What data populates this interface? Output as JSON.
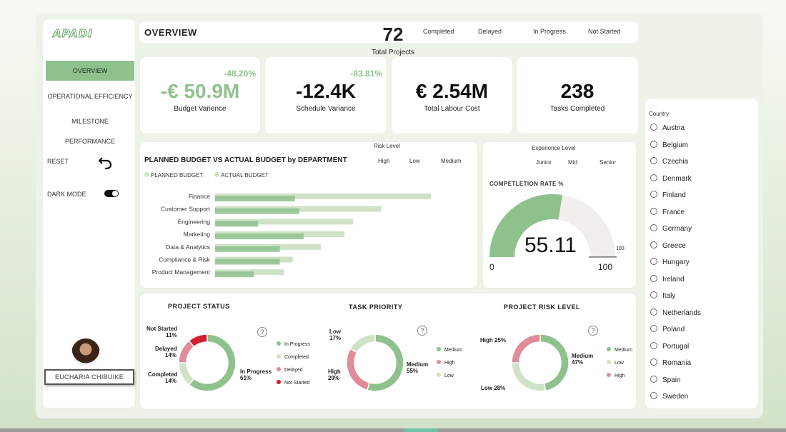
{
  "colors": {
    "green": "#8fc18d",
    "light_green": "#cfe2c6",
    "pink": "#e08c99",
    "red": "#d32030"
  },
  "sidebar": {
    "logo": "APADI",
    "nav": [
      "OVERVIEW",
      "OPERATIONAL EFFICIENCY",
      "MILESTONE PERFORMANCE"
    ],
    "active": 0,
    "reset_label": "RESET",
    "dark_mode_label": "DARK MODE",
    "user_name": "EUCHARIA CHIBUIKE"
  },
  "header": {
    "title": "OVERVIEW",
    "status_legend": [
      "Completed",
      "Delayed",
      "In Progress",
      "Not Started"
    ]
  },
  "kpis": [
    {
      "value": "-€ 50.9M",
      "label": "Budget Varience",
      "change": "-48.20%"
    },
    {
      "value": "-12.4K",
      "label": "Schedule Variance",
      "change": "-83.81%"
    },
    {
      "value": "€ 2.54M",
      "label": "Total Labour Cost"
    },
    {
      "value": "238",
      "label": "Tasks Completed"
    }
  ],
  "total": {
    "value": "72",
    "label": "Total Projects"
  },
  "country": {
    "title": "Country",
    "items": [
      "Austria",
      "Belgium",
      "Czechia",
      "Denmark",
      "Finland",
      "France",
      "Germany",
      "Greece",
      "Hungary",
      "Ireland",
      "Italy",
      "Netherlands",
      "Poland",
      "Portugal",
      "Romania",
      "Spain",
      "Sweden"
    ]
  },
  "budget_chart": {
    "title": "PLANNED BUDGET VS ACTUAL BUDGET by DEPARTMENT",
    "legend": [
      "PLANNED BUDGET",
      "ACTUAL BUDGET"
    ],
    "risk_title": "Risk Level",
    "risk_options": [
      "High",
      "Low",
      "Medium"
    ]
  },
  "gauge": {
    "experience_title": "Experience Level",
    "experience_options": [
      "Junior",
      "Mid",
      "Senior"
    ],
    "title": "COMPETLETION RATE %",
    "value": 55.11,
    "value_text": "55.11",
    "min_label": "0",
    "max_label": "100",
    "target_label": "100"
  },
  "donuts": [
    {
      "title": "PROJECT STATUS",
      "legend": [
        "In Progress",
        "Completed",
        "Delayed",
        "Not Started"
      ],
      "labels": [
        {
          "name": "Not Started",
          "pct": "11%"
        },
        {
          "name": "Delayed",
          "pct": "14%"
        },
        {
          "name": "Completed",
          "pct": "14%"
        },
        {
          "name": "In Progress",
          "pct": "61%"
        }
      ]
    },
    {
      "title": "TASK PRIORITY",
      "legend": [
        "Medium",
        "High",
        "Low"
      ],
      "labels": [
        {
          "name": "Low",
          "pct": "17%"
        },
        {
          "name": "High",
          "pct": "29%"
        },
        {
          "name": "Medium",
          "pct": "55%"
        }
      ]
    },
    {
      "title": "PROJECT RISK LEVEL",
      "legend": [
        "Medium",
        "Low",
        "High"
      ],
      "labels": [
        {
          "name": "High",
          "pct": "25%"
        },
        {
          "name": "Low",
          "pct": "28%"
        },
        {
          "name": "Medium",
          "pct": "47%"
        }
      ]
    }
  ],
  "chart_data": [
    {
      "type": "bar",
      "title": "PLANNED BUDGET VS ACTUAL BUDGET by DEPARTMENT",
      "orientation": "horizontal",
      "categories": [
        "Finance",
        "Customer Support",
        "Engineering",
        "Marketing",
        "Data & Analytics",
        "Compliance & Risk",
        "Product Management"
      ],
      "series": [
        {
          "name": "PLANNED BUDGET",
          "values": [
            100,
            77,
            64,
            60,
            49,
            36,
            32
          ]
        },
        {
          "name": "ACTUAL BUDGET",
          "values": [
            37,
            39,
            20,
            41,
            30,
            30,
            18
          ]
        }
      ],
      "legend": "top-left"
    },
    {
      "type": "pie",
      "title": "PROJECT STATUS",
      "categories": [
        "In Progress",
        "Completed",
        "Delayed",
        "Not Started"
      ],
      "values": [
        61,
        14,
        14,
        11
      ],
      "colors": [
        "#8fc18d",
        "#cfe2c6",
        "#e08c99",
        "#d32030"
      ]
    },
    {
      "type": "pie",
      "title": "TASK PRIORITY",
      "categories": [
        "Medium",
        "High",
        "Low"
      ],
      "values": [
        55,
        29,
        17
      ],
      "colors": [
        "#8fc18d",
        "#e08c99",
        "#cfe2c6"
      ]
    },
    {
      "type": "pie",
      "title": "PROJECT RISK LEVEL",
      "categories": [
        "Medium",
        "Low",
        "High"
      ],
      "values": [
        47,
        28,
        25
      ],
      "colors": [
        "#8fc18d",
        "#cfe2c6",
        "#e08c99"
      ]
    }
  ]
}
